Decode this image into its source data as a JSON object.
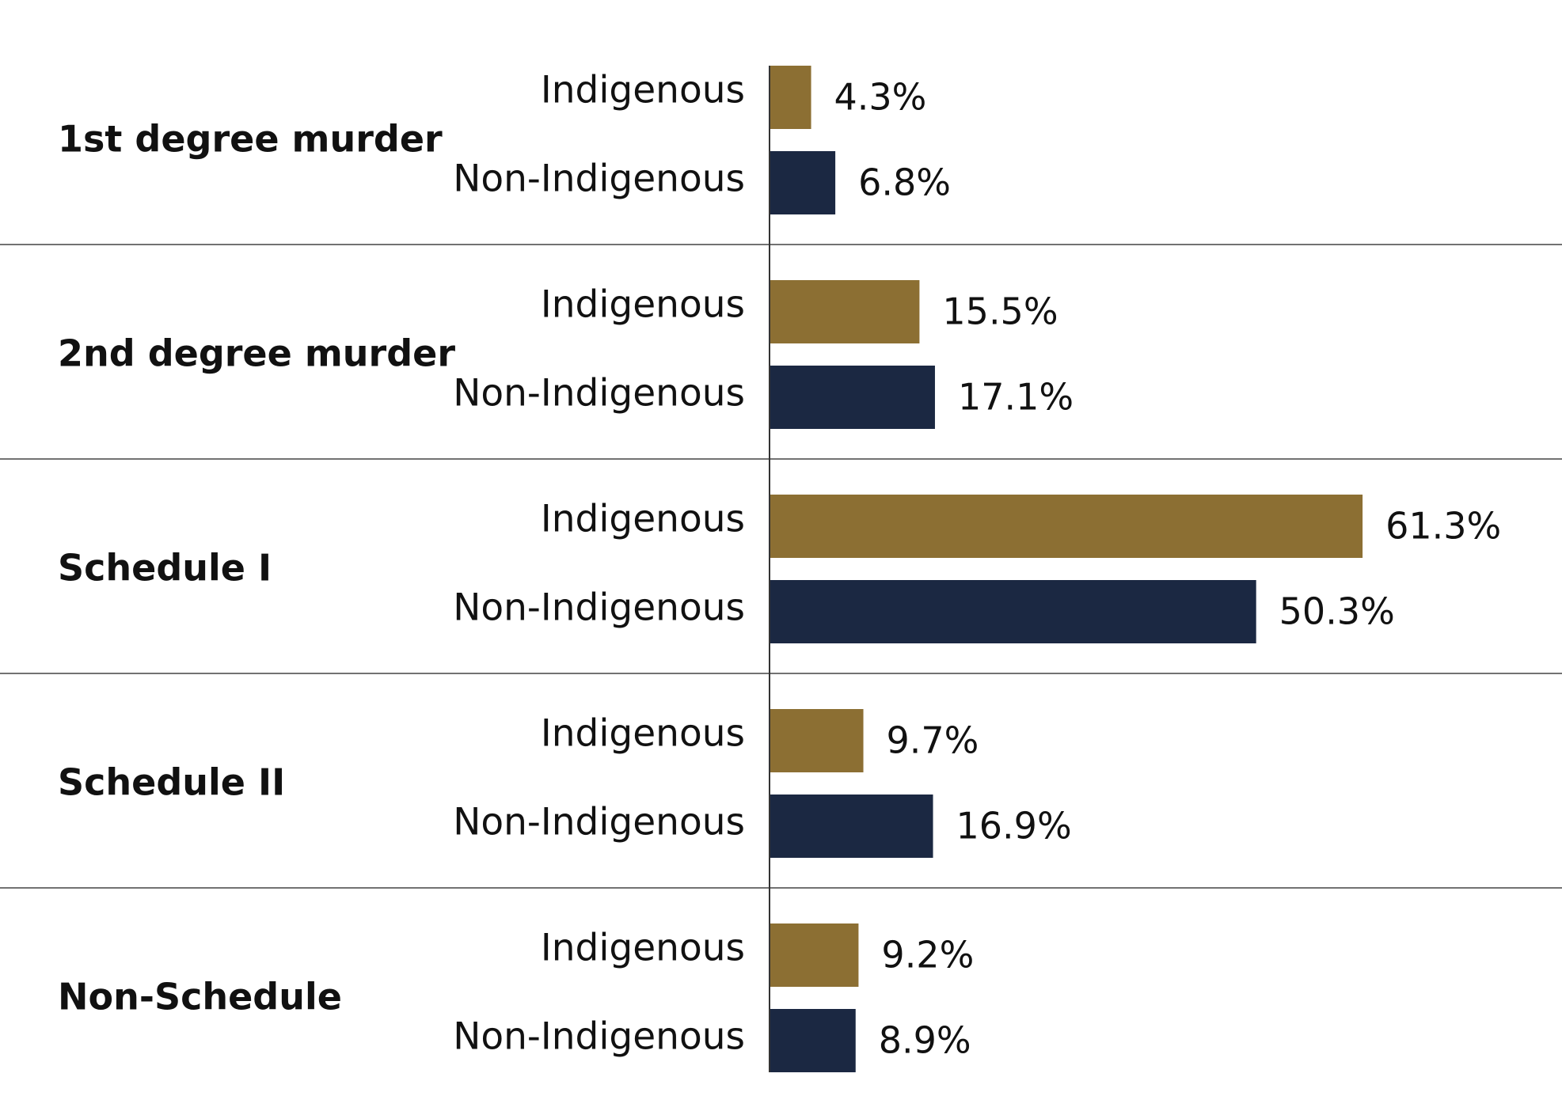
{
  "chart_data": {
    "type": "bar",
    "orientation": "horizontal",
    "categories": [
      "1st degree murder",
      "2nd degree murder",
      "Schedule I",
      "Schedule II",
      "Non-Schedule"
    ],
    "series": [
      {
        "name": "Indigenous",
        "color": "#8c6f33",
        "values": [
          4.3,
          15.5,
          61.3,
          9.7,
          9.2
        ],
        "value_labels": [
          "4.3%",
          "15.5%",
          "61.3%",
          "9.7%",
          "9.2%"
        ]
      },
      {
        "name": "Non-Indigenous",
        "color": "#1b2842",
        "values": [
          6.8,
          17.1,
          50.3,
          16.9,
          8.9
        ],
        "value_labels": [
          "6.8%",
          "17.1%",
          "50.3%",
          "16.9%",
          "8.9%"
        ]
      }
    ]
  }
}
